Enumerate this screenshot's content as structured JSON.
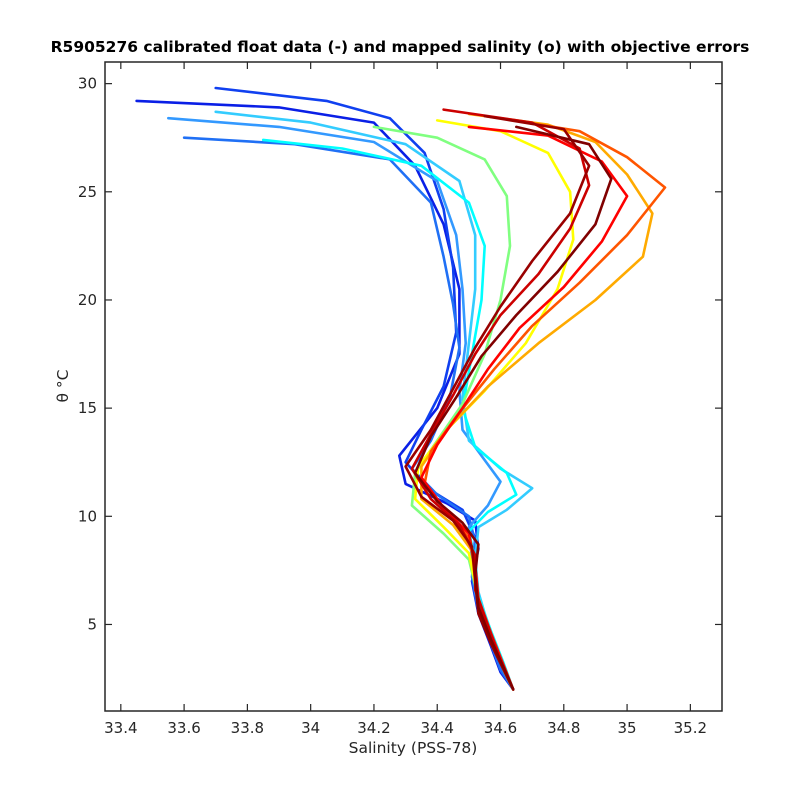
{
  "chart_data": {
    "type": "line",
    "title": "R5905276 calibrated float data (-) and mapped salinity (o) with objective errors",
    "xlabel": "Salinity (PSS-78)",
    "ylabel": "θ °C",
    "xlim": [
      33.35,
      35.3
    ],
    "ylim": [
      1,
      31
    ],
    "xticks": [
      33.4,
      33.6,
      33.8,
      34.0,
      34.2,
      34.4,
      34.6,
      34.8,
      35.0,
      35.2
    ],
    "xtick_labels": [
      "33.4",
      "33.6",
      "33.8",
      "34",
      "34.2",
      "34.4",
      "34.6",
      "34.8",
      "35",
      "35.2"
    ],
    "yticks": [
      5,
      10,
      15,
      20,
      25,
      30
    ],
    "ytick_labels": [
      "5",
      "10",
      "15",
      "20",
      "25",
      "30"
    ],
    "grid": false,
    "legend": "none",
    "colormap": "jet (profile number, blue = early, dark red = late)",
    "colors": {
      "early": "#0000ff",
      "mid": "#00ffff",
      "late": "#800000",
      "axis": "#262626"
    },
    "series": [
      {
        "color": "#0a1fe6",
        "points": [
          [
            33.45,
            29.2
          ],
          [
            33.9,
            28.9
          ],
          [
            34.2,
            28.2
          ],
          [
            34.33,
            26.2
          ],
          [
            34.42,
            23.5
          ],
          [
            34.47,
            20.5
          ],
          [
            34.47,
            17.5
          ],
          [
            34.4,
            15.0
          ],
          [
            34.28,
            12.8
          ],
          [
            34.3,
            11.5
          ],
          [
            34.43,
            10.6
          ],
          [
            34.52,
            9.8
          ],
          [
            34.53,
            8.5
          ],
          [
            34.51,
            7.0
          ],
          [
            34.53,
            5.5
          ],
          [
            34.57,
            4.0
          ],
          [
            34.6,
            2.8
          ],
          [
            34.64,
            2.0
          ]
        ]
      },
      {
        "color": "#1040f0",
        "points": [
          [
            33.7,
            29.8
          ],
          [
            34.05,
            29.2
          ],
          [
            34.25,
            28.4
          ],
          [
            34.36,
            26.8
          ],
          [
            34.42,
            24.2
          ],
          [
            34.45,
            21.5
          ],
          [
            34.46,
            18.5
          ],
          [
            34.42,
            16.0
          ],
          [
            34.35,
            14.0
          ],
          [
            34.3,
            12.5
          ],
          [
            34.38,
            11.2
          ],
          [
            34.48,
            10.3
          ],
          [
            34.52,
            9.0
          ],
          [
            34.51,
            7.5
          ],
          [
            34.53,
            5.8
          ],
          [
            34.57,
            4.2
          ],
          [
            34.6,
            3.0
          ],
          [
            34.64,
            2.0
          ]
        ]
      },
      {
        "color": "#2070f5",
        "points": [
          [
            33.6,
            27.5
          ],
          [
            33.95,
            27.2
          ],
          [
            34.25,
            26.5
          ],
          [
            34.38,
            24.5
          ],
          [
            34.42,
            22.0
          ],
          [
            34.45,
            19.8
          ],
          [
            34.47,
            17.8
          ],
          [
            34.44,
            15.5
          ],
          [
            34.38,
            13.5
          ],
          [
            34.32,
            12.2
          ],
          [
            34.4,
            11.0
          ],
          [
            34.5,
            10.0
          ],
          [
            34.52,
            8.8
          ],
          [
            34.51,
            7.2
          ],
          [
            34.53,
            5.6
          ],
          [
            34.57,
            4.1
          ],
          [
            34.6,
            2.9
          ],
          [
            34.64,
            2.0
          ]
        ]
      },
      {
        "color": "#3399ff",
        "points": [
          [
            33.55,
            28.4
          ],
          [
            33.9,
            28.0
          ],
          [
            34.2,
            27.3
          ],
          [
            34.4,
            25.5
          ],
          [
            34.46,
            23.0
          ],
          [
            34.48,
            20.5
          ],
          [
            34.49,
            18.0
          ],
          [
            34.47,
            15.8
          ],
          [
            34.48,
            14.0
          ],
          [
            34.55,
            12.6
          ],
          [
            34.6,
            11.6
          ],
          [
            34.56,
            10.5
          ],
          [
            34.5,
            9.5
          ],
          [
            34.51,
            8.0
          ],
          [
            34.52,
            6.5
          ],
          [
            34.56,
            4.8
          ],
          [
            34.6,
            3.2
          ],
          [
            34.64,
            2.0
          ]
        ]
      },
      {
        "color": "#33ccff",
        "points": [
          [
            33.7,
            28.7
          ],
          [
            34.0,
            28.2
          ],
          [
            34.3,
            27.2
          ],
          [
            34.47,
            25.5
          ],
          [
            34.52,
            23.0
          ],
          [
            34.52,
            20.5
          ],
          [
            34.5,
            18.0
          ],
          [
            34.48,
            15.5
          ],
          [
            34.5,
            13.5
          ],
          [
            34.6,
            12.2
          ],
          [
            34.7,
            11.3
          ],
          [
            34.62,
            10.3
          ],
          [
            34.53,
            9.5
          ],
          [
            34.52,
            8.0
          ],
          [
            34.53,
            6.5
          ],
          [
            34.56,
            5.0
          ],
          [
            34.6,
            3.3
          ],
          [
            34.64,
            2.0
          ]
        ]
      },
      {
        "color": "#00ffff",
        "points": [
          [
            33.85,
            27.4
          ],
          [
            34.1,
            27.0
          ],
          [
            34.35,
            26.2
          ],
          [
            34.5,
            24.5
          ],
          [
            34.55,
            22.5
          ],
          [
            34.54,
            20.0
          ],
          [
            34.51,
            17.5
          ],
          [
            34.48,
            15.0
          ],
          [
            34.52,
            13.2
          ],
          [
            34.62,
            12.0
          ],
          [
            34.65,
            11.0
          ],
          [
            34.56,
            10.2
          ],
          [
            34.5,
            9.3
          ],
          [
            34.52,
            8.0
          ],
          [
            34.53,
            6.3
          ],
          [
            34.57,
            4.7
          ],
          [
            34.61,
            3.2
          ],
          [
            34.64,
            2.0
          ]
        ]
      },
      {
        "color": "#80ff80",
        "points": [
          [
            34.2,
            28.0
          ],
          [
            34.4,
            27.5
          ],
          [
            34.55,
            26.5
          ],
          [
            34.62,
            24.8
          ],
          [
            34.63,
            22.5
          ],
          [
            34.6,
            20.0
          ],
          [
            34.55,
            17.5
          ],
          [
            34.48,
            15.2
          ],
          [
            34.4,
            13.5
          ],
          [
            34.33,
            12.0
          ],
          [
            34.32,
            10.5
          ],
          [
            34.42,
            9.2
          ],
          [
            34.5,
            8.0
          ],
          [
            34.52,
            6.8
          ],
          [
            34.54,
            5.3
          ],
          [
            34.58,
            4.0
          ],
          [
            34.61,
            2.9
          ],
          [
            34.64,
            2.0
          ]
        ]
      },
      {
        "color": "#ffff00",
        "points": [
          [
            34.4,
            28.3
          ],
          [
            34.6,
            27.8
          ],
          [
            34.75,
            26.8
          ],
          [
            34.82,
            25.0
          ],
          [
            34.83,
            22.8
          ],
          [
            34.78,
            20.5
          ],
          [
            34.68,
            18.0
          ],
          [
            34.55,
            15.8
          ],
          [
            34.43,
            14.0
          ],
          [
            34.34,
            12.3
          ],
          [
            34.33,
            10.8
          ],
          [
            34.42,
            9.5
          ],
          [
            34.5,
            8.3
          ],
          [
            34.52,
            6.9
          ],
          [
            34.54,
            5.4
          ],
          [
            34.58,
            4.0
          ],
          [
            34.61,
            2.9
          ],
          [
            34.64,
            2.0
          ]
        ]
      },
      {
        "color": "#ffaa00",
        "points": [
          [
            34.5,
            28.6
          ],
          [
            34.75,
            28.1
          ],
          [
            34.9,
            27.3
          ],
          [
            35.0,
            25.8
          ],
          [
            35.08,
            24.0
          ],
          [
            35.05,
            22.0
          ],
          [
            34.9,
            20.0
          ],
          [
            34.72,
            18.0
          ],
          [
            34.56,
            16.0
          ],
          [
            34.43,
            14.0
          ],
          [
            34.35,
            12.3
          ],
          [
            34.35,
            10.8
          ],
          [
            34.45,
            9.6
          ],
          [
            34.51,
            8.4
          ],
          [
            34.52,
            7.0
          ],
          [
            34.54,
            5.5
          ],
          [
            34.58,
            4.0
          ],
          [
            34.61,
            2.9
          ],
          [
            34.64,
            2.0
          ]
        ]
      },
      {
        "color": "#ff5500",
        "points": [
          [
            34.6,
            28.4
          ],
          [
            34.85,
            27.8
          ],
          [
            35.0,
            26.6
          ],
          [
            35.12,
            25.2
          ],
          [
            35.0,
            23.0
          ],
          [
            34.85,
            20.8
          ],
          [
            34.7,
            18.8
          ],
          [
            34.58,
            16.8
          ],
          [
            34.47,
            14.8
          ],
          [
            34.38,
            13.0
          ],
          [
            34.36,
            11.5
          ],
          [
            34.43,
            10.2
          ],
          [
            34.5,
            9.0
          ],
          [
            34.52,
            7.6
          ],
          [
            34.53,
            6.0
          ],
          [
            34.57,
            4.5
          ],
          [
            34.61,
            3.1
          ],
          [
            34.64,
            2.0
          ]
        ]
      },
      {
        "color": "#ff0000",
        "points": [
          [
            34.5,
            28.0
          ],
          [
            34.75,
            27.6
          ],
          [
            34.92,
            26.4
          ],
          [
            35.0,
            24.8
          ],
          [
            34.92,
            22.7
          ],
          [
            34.8,
            20.6
          ],
          [
            34.66,
            18.7
          ],
          [
            34.56,
            16.8
          ],
          [
            34.48,
            15.0
          ],
          [
            34.4,
            13.3
          ],
          [
            34.35,
            11.8
          ],
          [
            34.42,
            10.4
          ],
          [
            34.5,
            9.2
          ],
          [
            34.52,
            7.8
          ],
          [
            34.53,
            6.2
          ],
          [
            34.57,
            4.6
          ],
          [
            34.61,
            3.1
          ],
          [
            34.64,
            2.0
          ]
        ]
      },
      {
        "color": "#cc0000",
        "points": [
          [
            34.42,
            28.8
          ],
          [
            34.7,
            28.2
          ],
          [
            34.85,
            27.0
          ],
          [
            34.88,
            25.3
          ],
          [
            34.82,
            23.3
          ],
          [
            34.72,
            21.2
          ],
          [
            34.6,
            19.3
          ],
          [
            34.52,
            17.5
          ],
          [
            34.45,
            15.6
          ],
          [
            34.38,
            13.8
          ],
          [
            34.32,
            12.2
          ],
          [
            34.38,
            10.8
          ],
          [
            34.47,
            9.6
          ],
          [
            34.52,
            8.2
          ],
          [
            34.52,
            6.6
          ],
          [
            34.56,
            4.9
          ],
          [
            34.6,
            3.3
          ],
          [
            34.64,
            2.0
          ]
        ]
      },
      {
        "color": "#990000",
        "points": [
          [
            34.55,
            28.5
          ],
          [
            34.8,
            27.9
          ],
          [
            34.88,
            26.2
          ],
          [
            34.82,
            24.0
          ],
          [
            34.7,
            21.8
          ],
          [
            34.6,
            19.7
          ],
          [
            34.52,
            17.8
          ],
          [
            34.45,
            15.9
          ],
          [
            34.38,
            14.0
          ],
          [
            34.3,
            12.3
          ],
          [
            34.35,
            10.9
          ],
          [
            34.45,
            9.8
          ],
          [
            34.51,
            8.6
          ],
          [
            34.52,
            7.0
          ],
          [
            34.53,
            5.5
          ],
          [
            34.57,
            4.1
          ],
          [
            34.61,
            2.9
          ],
          [
            34.64,
            2.0
          ]
        ]
      },
      {
        "color": "#800000",
        "points": [
          [
            34.65,
            28.0
          ],
          [
            34.88,
            27.2
          ],
          [
            34.95,
            25.6
          ],
          [
            34.9,
            23.5
          ],
          [
            34.78,
            21.3
          ],
          [
            34.65,
            19.3
          ],
          [
            34.54,
            17.4
          ],
          [
            34.46,
            15.5
          ],
          [
            34.38,
            13.7
          ],
          [
            34.33,
            12.0
          ],
          [
            34.4,
            10.7
          ],
          [
            34.48,
            9.7
          ],
          [
            34.53,
            8.7
          ],
          [
            34.52,
            7.3
          ],
          [
            34.53,
            5.8
          ],
          [
            34.57,
            4.3
          ],
          [
            34.61,
            3.0
          ],
          [
            34.64,
            2.0
          ]
        ]
      }
    ]
  }
}
